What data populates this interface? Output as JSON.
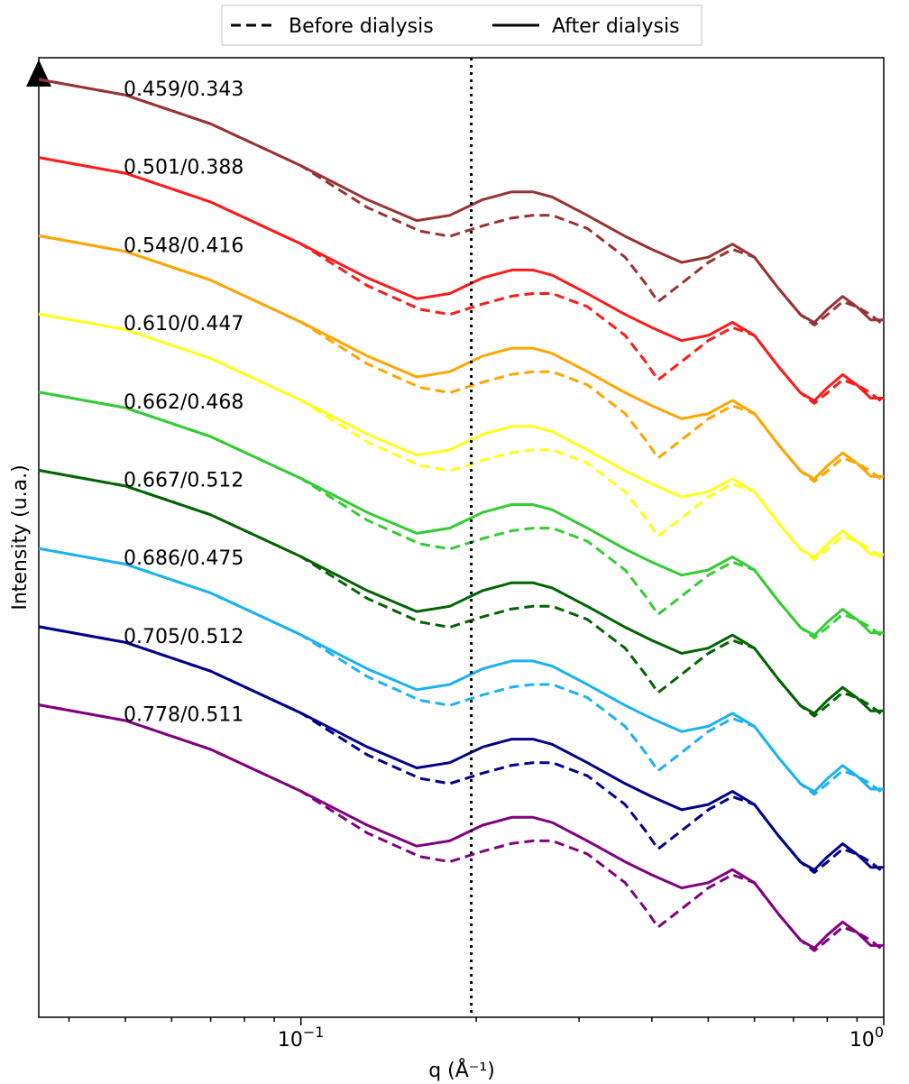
{
  "chart_data": {
    "type": "line",
    "title": "",
    "xlabel": "q (Å⁻¹)",
    "ylabel": "Intensity (u.a.)",
    "xscale": "log",
    "xlim": [
      0.0355,
      1.0
    ],
    "ylim": [
      0,
      1
    ],
    "y_ticks_shown": false,
    "x_ticks": [
      {
        "value": 0.1,
        "base": "10",
        "exp": "−1"
      },
      {
        "value": 1.0,
        "base": "10",
        "exp": "0"
      }
    ],
    "grid": false,
    "vertical_reference_line": {
      "x": 0.196,
      "style": "dotted"
    },
    "legend": {
      "placement": "top-center, above plot",
      "entries": [
        {
          "label": "Before dialysis",
          "style": "dashed"
        },
        {
          "label": "After dialysis",
          "style": "solid"
        }
      ]
    },
    "after_template": {
      "x": [
        0.0355,
        0.05,
        0.07,
        0.1,
        0.13,
        0.158,
        0.18,
        0.205,
        0.23,
        0.25,
        0.27,
        0.31,
        0.36,
        0.4,
        0.45,
        0.5,
        0.55,
        0.6,
        0.66,
        0.72,
        0.76,
        0.8,
        0.85,
        0.9,
        0.95,
        1.0
      ],
      "y": [
        0,
        0.06,
        0.17,
        0.33,
        0.46,
        0.54,
        0.52,
        0.46,
        0.43,
        0.43,
        0.45,
        0.52,
        0.6,
        0.65,
        0.7,
        0.68,
        0.63,
        0.68,
        0.8,
        0.9,
        0.93,
        0.88,
        0.83,
        0.87,
        0.92,
        0.92
      ]
    },
    "before_template": {
      "x": [
        0.0355,
        0.05,
        0.07,
        0.1,
        0.13,
        0.16,
        0.18,
        0.205,
        0.23,
        0.25,
        0.27,
        0.31,
        0.36,
        0.39,
        0.41,
        0.45,
        0.5,
        0.55,
        0.6,
        0.66,
        0.72,
        0.76,
        0.8,
        0.85,
        0.9,
        0.95,
        1.0
      ],
      "y": [
        0,
        0.06,
        0.17,
        0.33,
        0.49,
        0.58,
        0.6,
        0.56,
        0.53,
        0.52,
        0.52,
        0.57,
        0.68,
        0.78,
        0.85,
        0.78,
        0.7,
        0.65,
        0.68,
        0.8,
        0.9,
        0.94,
        0.9,
        0.85,
        0.87,
        0.9,
        0.94
      ]
    },
    "series": [
      {
        "label": "0.459/0.343",
        "color": "#993333"
      },
      {
        "label": "0.501/0.388",
        "color": "#ff1a1a"
      },
      {
        "label": "0.548/0.416",
        "color": "#ffa500"
      },
      {
        "label": "0.610/0.447",
        "color": "#ffff1a"
      },
      {
        "label": "0.662/0.468",
        "color": "#33cc33"
      },
      {
        "label": "0.667/0.512",
        "color": "#006400"
      },
      {
        "label": "0.686/0.475",
        "color": "#1ab2f0"
      },
      {
        "label": "0.705/0.512",
        "color": "#00008b"
      },
      {
        "label": "0.778/0.511",
        "color": "#800080"
      }
    ]
  }
}
